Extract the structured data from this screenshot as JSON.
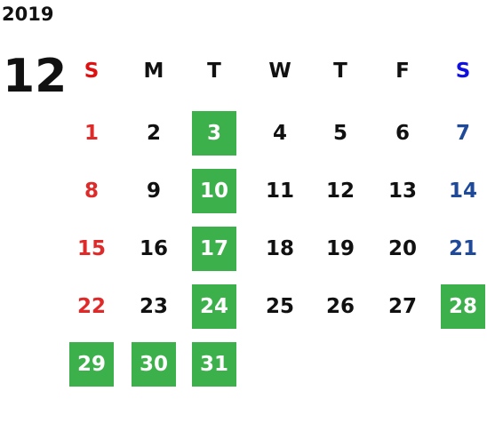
{
  "year": "2019",
  "month": "12",
  "weekdays": [
    "S",
    "M",
    "T",
    "W",
    "T",
    "F",
    "S"
  ],
  "weeks": [
    [
      "1",
      "2",
      "3",
      "4",
      "5",
      "6",
      "7"
    ],
    [
      "8",
      "9",
      "10",
      "11",
      "12",
      "13",
      "14"
    ],
    [
      "15",
      "16",
      "17",
      "18",
      "19",
      "20",
      "21"
    ],
    [
      "22",
      "23",
      "24",
      "25",
      "26",
      "27",
      "28"
    ],
    [
      "29",
      "30",
      "31",
      null,
      null,
      null,
      null
    ]
  ],
  "highlighted": [
    "3",
    "10",
    "17",
    "24",
    "28",
    "29",
    "30",
    "31"
  ]
}
